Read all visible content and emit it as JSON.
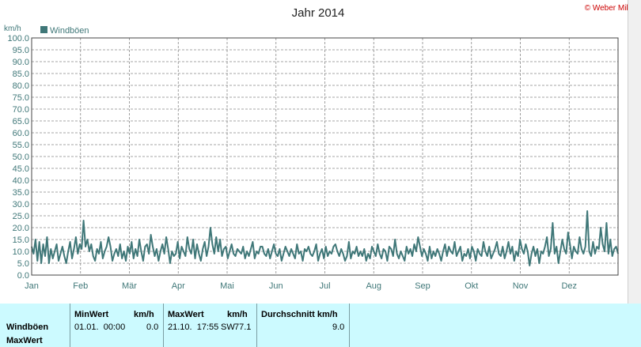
{
  "header": {
    "title": "Jahr 2014",
    "copyright": "© Weber Mike"
  },
  "colors": {
    "series": "#3f7778",
    "grid": "#888888",
    "stats_bg": "#ccfaff"
  },
  "chart_data": {
    "type": "line",
    "ylabel": "km/h",
    "legend": "top-left",
    "grid": true,
    "ylim": [
      0,
      100
    ],
    "y_ticks": [
      "0.0",
      "5.0",
      "10.0",
      "15.0",
      "20.0",
      "25.0",
      "30.0",
      "35.0",
      "40.0",
      "45.0",
      "50.0",
      "55.0",
      "60.0",
      "65.0",
      "70.0",
      "75.0",
      "80.0",
      "85.0",
      "90.0",
      "95.0",
      "100.0"
    ],
    "x_labels": [
      "Jan",
      "Feb",
      "Mär",
      "Apr",
      "Mai",
      "Jun",
      "Jul",
      "Aug",
      "Sep",
      "Okt",
      "Nov",
      "Dez"
    ],
    "series": [
      {
        "name": "Windböen",
        "values": [
          12,
          9,
          15,
          6,
          14,
          5,
          13,
          8,
          16,
          5,
          11,
          7,
          10,
          13,
          6,
          9,
          12,
          8,
          5,
          10,
          14,
          7,
          11,
          16,
          9,
          13,
          11,
          23,
          12,
          15,
          10,
          13,
          8,
          6,
          11,
          9,
          14,
          7,
          10,
          12,
          16,
          12,
          6,
          9,
          11,
          8,
          13,
          7,
          10,
          6,
          12,
          9,
          14,
          7,
          11,
          8,
          15,
          10,
          6,
          12,
          13,
          9,
          17,
          12,
          8,
          11,
          6,
          10,
          13,
          9,
          16,
          11,
          5,
          10,
          8,
          9,
          14,
          7,
          12,
          10,
          8,
          16,
          11,
          9,
          15,
          7,
          13,
          9,
          6,
          11,
          14,
          8,
          12,
          20,
          13,
          9,
          16,
          10,
          15,
          8,
          11,
          12,
          7,
          10,
          13,
          9,
          8,
          11,
          10,
          9,
          12,
          7,
          10,
          8,
          11,
          14,
          7,
          10,
          9,
          12,
          12,
          9,
          8,
          11,
          7,
          10,
          13,
          9,
          8,
          11,
          6,
          9,
          12,
          10,
          8,
          11,
          9,
          7,
          13,
          9,
          10,
          6,
          11,
          10,
          12,
          9,
          8,
          10,
          13,
          6,
          9,
          11,
          7,
          12,
          8,
          10,
          9,
          12,
          13,
          10,
          8,
          11,
          9,
          6,
          8,
          14,
          7,
          10,
          9,
          12,
          8,
          10,
          8,
          11,
          6,
          9,
          7,
          12,
          10,
          8,
          13,
          9,
          7,
          11,
          10,
          6,
          12,
          11,
          8,
          15,
          9,
          7,
          10,
          8,
          6,
          12,
          9,
          11,
          8,
          13,
          10,
          16,
          12,
          8,
          11,
          9,
          6,
          12,
          7,
          10,
          8,
          11,
          9,
          6,
          10,
          13,
          8,
          12,
          10,
          9,
          14,
          8,
          10,
          12,
          6,
          9,
          8,
          11,
          7,
          12,
          10,
          6,
          11,
          9,
          8,
          14,
          10,
          8,
          12,
          7,
          9,
          11,
          14,
          9,
          8,
          12,
          7,
          10,
          14,
          9,
          12,
          6,
          10,
          8,
          15,
          11,
          9,
          13,
          10,
          4,
          9,
          12,
          8,
          11,
          5,
          10,
          9,
          12,
          16,
          8,
          11,
          22,
          9,
          12,
          5,
          10,
          15,
          11,
          9,
          18,
          13,
          7,
          12,
          10,
          9,
          16,
          11,
          9,
          12,
          27,
          10,
          8,
          14,
          9,
          12,
          11,
          20,
          13,
          10,
          22,
          9,
          15,
          8,
          11,
          12,
          9
        ]
      }
    ],
    "legend_entries": [
      "Windböen"
    ]
  },
  "stats": {
    "col_min_header": "MinWert",
    "col_min_unit": "km/h",
    "col_max_header": "MaxWert",
    "col_max_unit": "km/h",
    "col_avg_header": "Durchschnitt km/h",
    "row_label_1": "Windböen",
    "row_label_2": "MaxWert",
    "min_date": "01.01.  00:00",
    "min_value": "0.0",
    "max_date": "21.10.  17:55",
    "max_dir": "SW",
    "max_value": "77.1",
    "avg_value": "9.0"
  }
}
